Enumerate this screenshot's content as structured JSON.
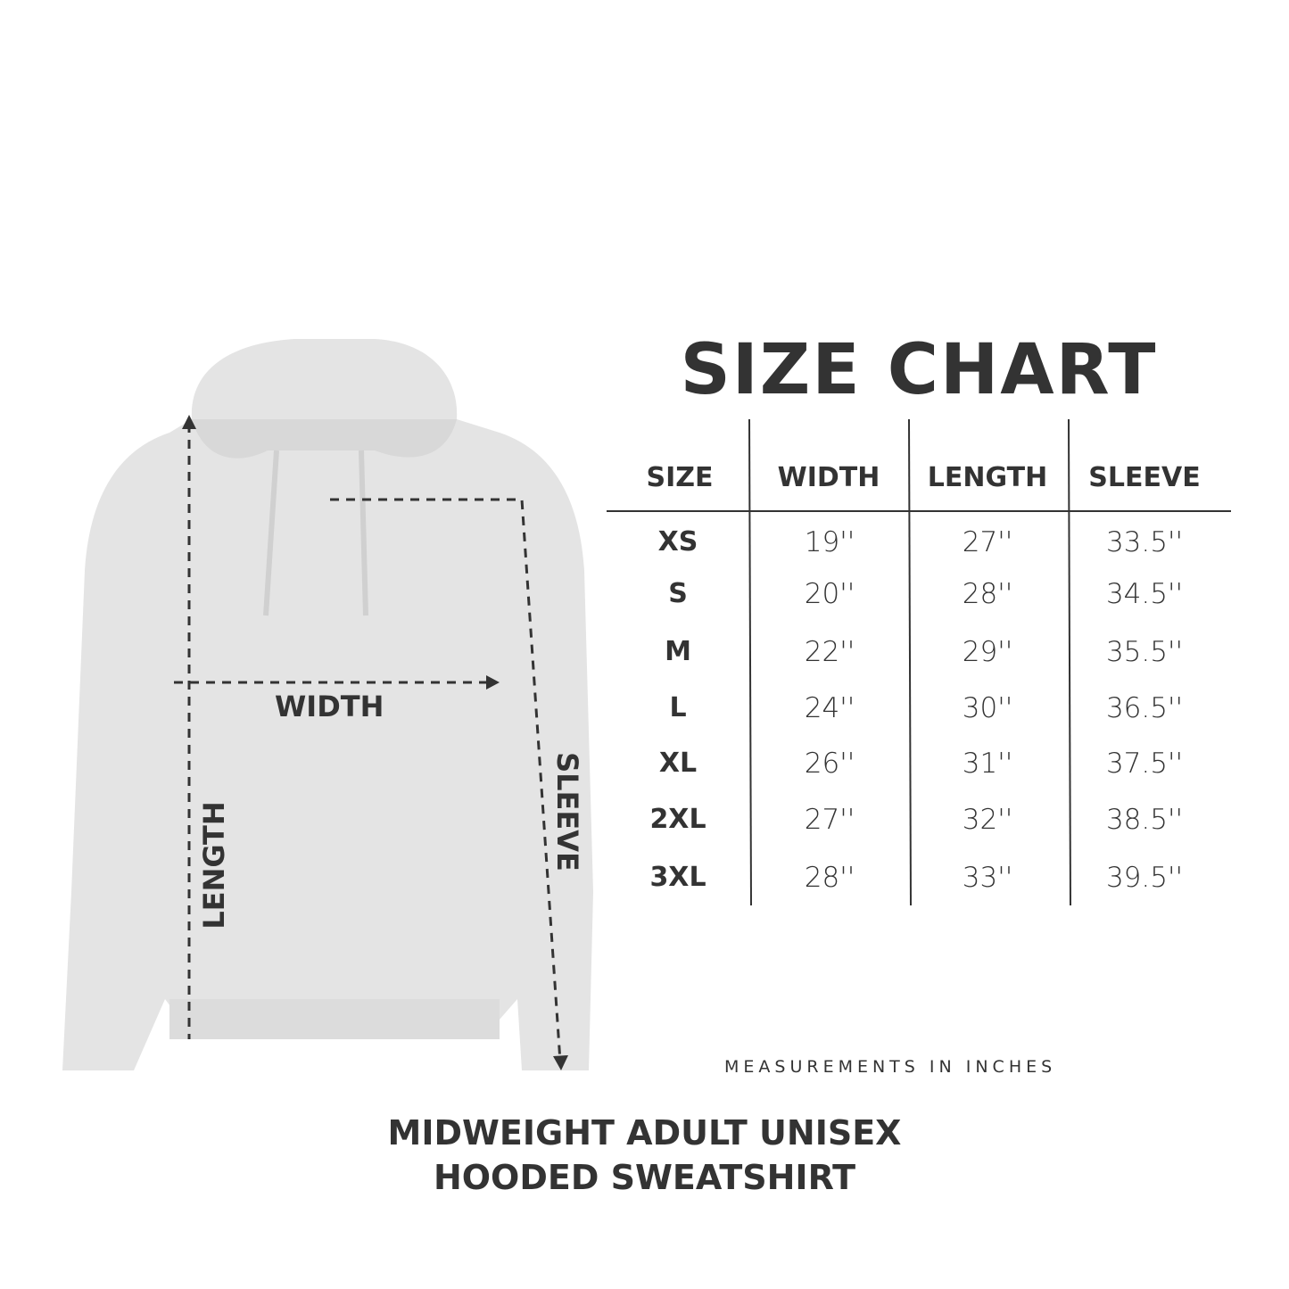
{
  "title": "SIZE CHART",
  "table": {
    "headers": [
      "SIZE",
      "WIDTH",
      "LENGTH",
      "SLEEVE"
    ],
    "rows": [
      {
        "size": "XS",
        "width": "19''",
        "length": "27''",
        "sleeve": "33.5''"
      },
      {
        "size": "S",
        "width": "20''",
        "length": "28''",
        "sleeve": "34.5''"
      },
      {
        "size": "M",
        "width": "22''",
        "length": "29''",
        "sleeve": "35.5''"
      },
      {
        "size": "L",
        "width": "24''",
        "length": "30''",
        "sleeve": "36.5''"
      },
      {
        "size": "XL",
        "width": "26''",
        "length": "31''",
        "sleeve": "37.5''"
      },
      {
        "size": "2XL",
        "width": "27''",
        "length": "32''",
        "sleeve": "38.5''"
      },
      {
        "size": "3XL",
        "width": "28''",
        "length": "33''",
        "sleeve": "39.5''"
      }
    ]
  },
  "diagram": {
    "width_label": "WIDTH",
    "length_label": "LENGTH",
    "sleeve_label": "SLEEVE",
    "garment_color": "#e4e4e4",
    "arrow_color": "#333333"
  },
  "note": "MEASUREMENTS IN INCHES",
  "product": {
    "line1": "MIDWEIGHT ADULT UNISEX",
    "line2": "HOODED SWEATSHIRT"
  }
}
